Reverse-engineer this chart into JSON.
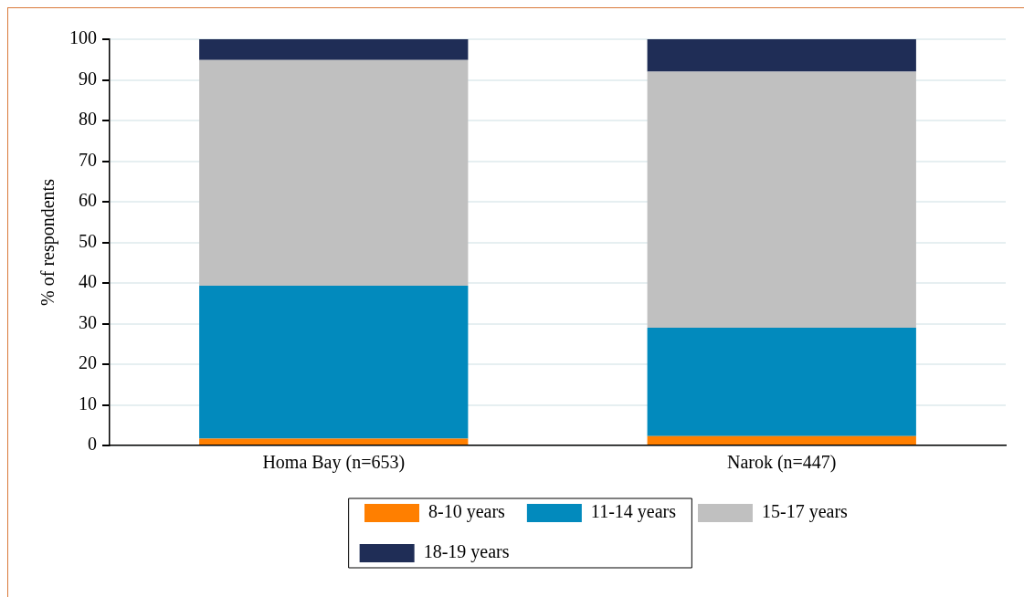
{
  "chart_data": {
    "type": "bar",
    "stacked": true,
    "ylabel": "% of respondents",
    "categories": [
      "Homa Bay (n=653)",
      "Narok (n=447)"
    ],
    "series": [
      {
        "name": "8-10 years",
        "color": "#ff7f00",
        "values": [
          1.7,
          2.3
        ]
      },
      {
        "name": "11-14 years",
        "color": "#028abd",
        "values": [
          37.6,
          26.7
        ]
      },
      {
        "name": "15-17 years",
        "color": "#c0c0c0",
        "values": [
          55.6,
          63.0
        ]
      },
      {
        "name": "18-19 years",
        "color": "#1f2d56",
        "values": [
          5.1,
          8.0
        ]
      }
    ],
    "ylim": [
      0,
      100
    ],
    "yticks": [
      0,
      10,
      20,
      30,
      40,
      50,
      60,
      70,
      80,
      90,
      100
    ],
    "grid": "y",
    "legend": "bottom"
  }
}
